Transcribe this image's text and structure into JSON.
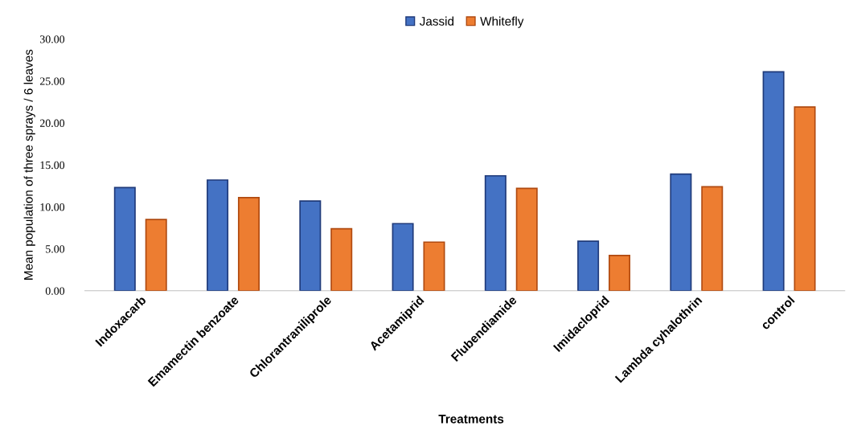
{
  "chart_data": {
    "type": "bar",
    "xlabel": "Treatments",
    "ylabel": "Mean population of three sprays / 6 leaves",
    "categories": [
      "Indoxacarb",
      "Emamectin benzoate",
      "Chlorantraniliprole",
      "Acetamiprid",
      "Flubendiamide",
      "Imidacloprid",
      "Lambda cyhalothrin",
      "control"
    ],
    "series": [
      {
        "name": "Jassid",
        "color": "#4472c4",
        "values": [
          12.3,
          13.2,
          10.7,
          8.0,
          13.7,
          5.9,
          13.9,
          26.1
        ]
      },
      {
        "name": "Whitefly",
        "color": "#ed7d31",
        "values": [
          8.5,
          11.1,
          7.4,
          5.8,
          12.2,
          4.2,
          12.4,
          21.9
        ]
      }
    ],
    "ylim": [
      0,
      30
    ],
    "yticks": [
      {
        "value": 0,
        "label": "0.00"
      },
      {
        "value": 5,
        "label": "5.00"
      },
      {
        "value": 10,
        "label": "10.00"
      },
      {
        "value": 15,
        "label": "15.00"
      },
      {
        "value": 20,
        "label": "20.00"
      },
      {
        "value": 25,
        "label": "25.00"
      },
      {
        "value": 30,
        "label": "30.00"
      }
    ],
    "grid": false,
    "legend": "top"
  }
}
